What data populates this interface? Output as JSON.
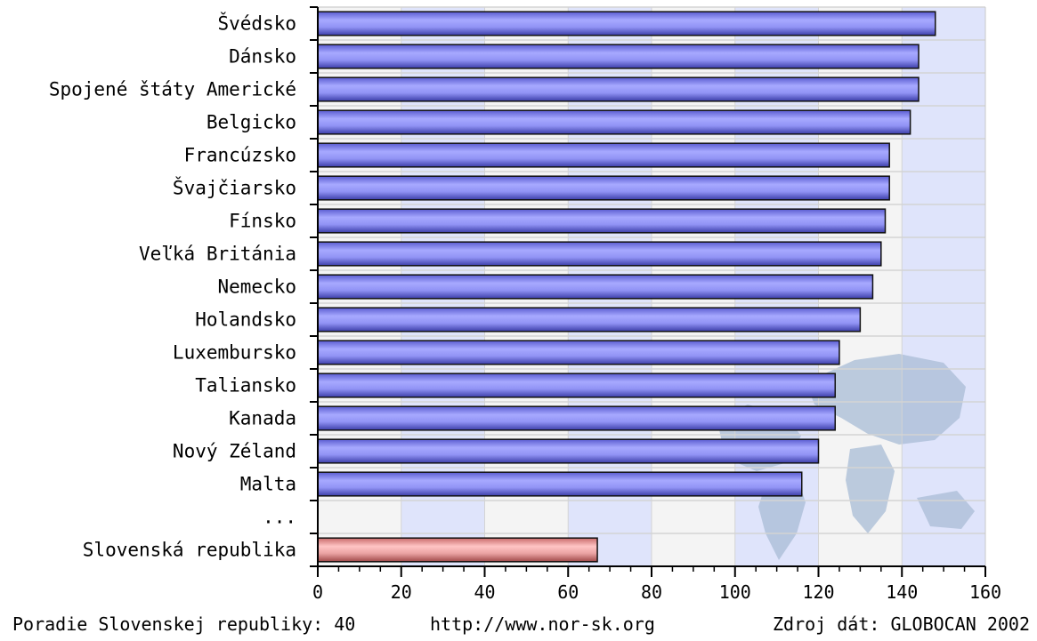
{
  "chart_data": {
    "type": "bar",
    "orientation": "horizontal",
    "categories": [
      "Švédsko",
      "Dánsko",
      "Spojené štáty Americké",
      "Belgicko",
      "Francúzsko",
      "Švajčiarsko",
      "Fínsko",
      "Veľká Británia",
      "Nemecko",
      "Holandsko",
      "Luxembursko",
      "Taliansko",
      "Kanada",
      "Nový Zéland",
      "Malta",
      "...",
      "Slovenská republika"
    ],
    "values": [
      148,
      144,
      144,
      142,
      137,
      137,
      136,
      135,
      133,
      130,
      125,
      124,
      124,
      120,
      116,
      null,
      67
    ],
    "highlight_index": 16,
    "xlim": [
      0,
      160
    ],
    "xticks": [
      0,
      20,
      40,
      60,
      80,
      100,
      120,
      140,
      160
    ],
    "grid": true,
    "colors": {
      "bar": "#8a8cf0",
      "bar_dark": "#4a4cc0",
      "highlight": "#e89a9a",
      "highlight_dark": "#b45a5a",
      "band_a": "#f4f4f4",
      "band_b": "#dfe4fb",
      "map": "#a9bcd6"
    }
  },
  "footer": {
    "rank": "Poradie Slovenskej republiky: 40",
    "url": "http://www.nor-sk.org",
    "source": "Zdroj dát: GLOBOCAN 2002"
  }
}
